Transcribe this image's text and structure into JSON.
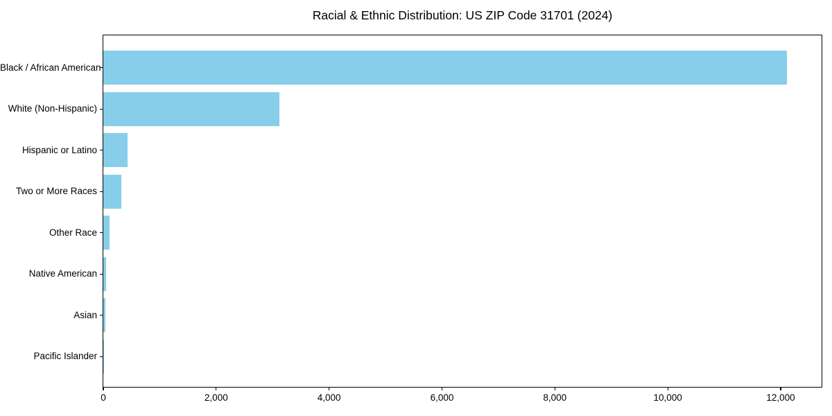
{
  "chart_data": {
    "type": "bar",
    "orientation": "horizontal",
    "title": "Racial & Ethnic Distribution: US ZIP Code 31701 (2024)",
    "categories": [
      "Black / African American",
      "White (Non-Hispanic)",
      "Hispanic or Latino",
      "Two or More Races",
      "Other Race",
      "Native American",
      "Asian",
      "Pacific Islander"
    ],
    "values": [
      12110,
      3120,
      430,
      315,
      105,
      45,
      38,
      5
    ],
    "bar_color": "#87CEEB",
    "axis_color": "#000000",
    "text_color": "#000000",
    "background_color": "#ffffff",
    "xlim": [
      0,
      12725
    ],
    "x_ticks": [
      0,
      2000,
      4000,
      6000,
      8000,
      10000,
      12000
    ],
    "x_tick_labels": [
      "0",
      "2,000",
      "4,000",
      "6,000",
      "8,000",
      "10,000",
      "12,000"
    ],
    "grid": false,
    "legend_position": "none"
  }
}
